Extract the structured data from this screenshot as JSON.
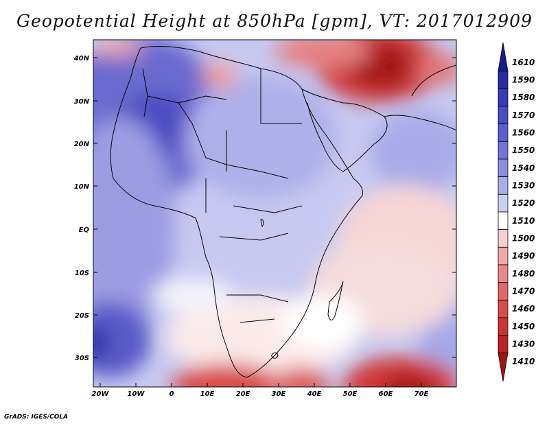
{
  "title": "Geopotential Height at 850hPa [gpm], VT: 2017012909",
  "footer": "GrADS: IGES/COLA",
  "map": {
    "lat_labels": [
      "40N",
      "30N",
      "20N",
      "10N",
      "EQ",
      "10S",
      "20S",
      "30S"
    ],
    "lon_labels": [
      "20W",
      "10W",
      "0",
      "10E",
      "20E",
      "30E",
      "40E",
      "50E",
      "60E",
      "70E"
    ],
    "region": "Africa and Middle East"
  },
  "colorbar": {
    "levels": [
      "1610",
      "1590",
      "1580",
      "1570",
      "1560",
      "1550",
      "1540",
      "1530",
      "1520",
      "1510",
      "1500",
      "1490",
      "1480",
      "1470",
      "1460",
      "1450",
      "1430",
      "1410"
    ],
    "colors": [
      "#1a1a8c",
      "#2929a8",
      "#3a3ab8",
      "#4b4bc4",
      "#5e5ece",
      "#7474d6",
      "#8e8ee0",
      "#acacea",
      "#cccff4",
      "#ffffff",
      "#f7d0d0",
      "#f0aaaa",
      "#e88888",
      "#e06868",
      "#d84c4c",
      "#cc3434",
      "#bb2222",
      "#a51414"
    ]
  }
}
